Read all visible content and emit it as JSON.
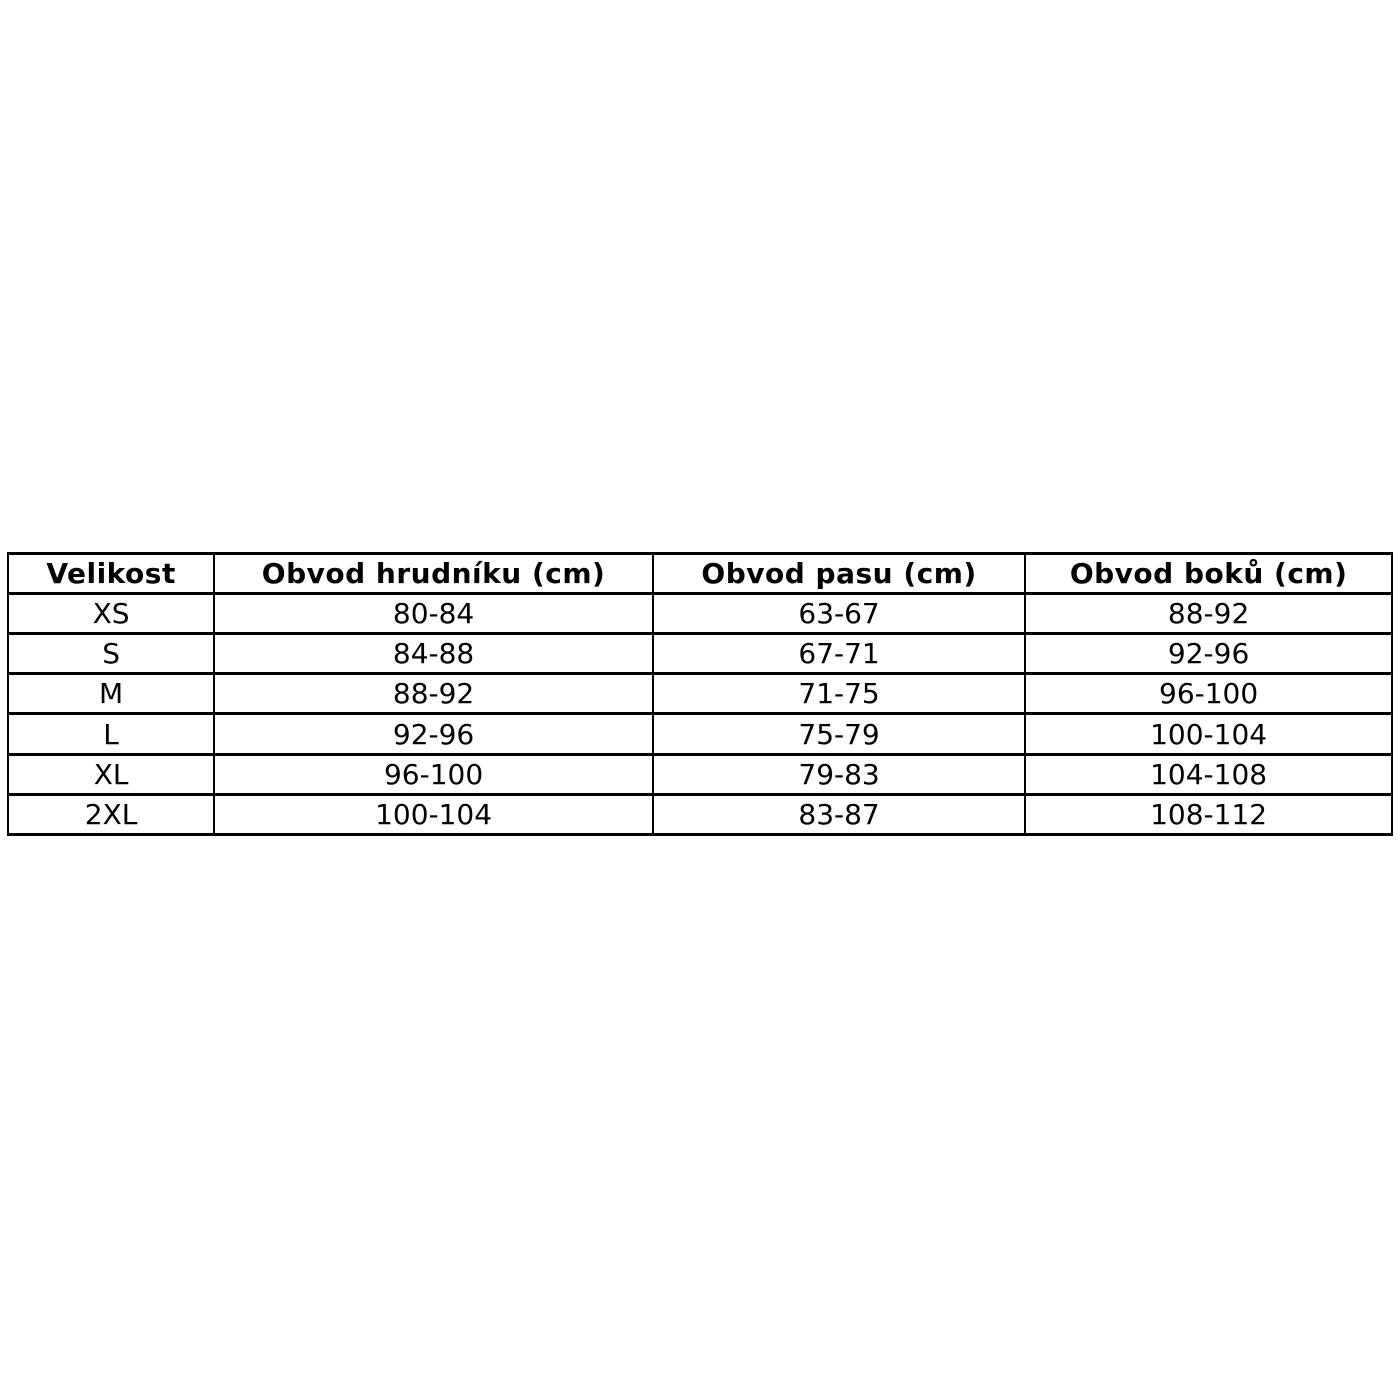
{
  "colors": {
    "background": "#ffffff",
    "border": "#000000",
    "text": "#000000"
  },
  "table": {
    "columns": [
      "Velikost",
      "Obvod hrudníku (cm)",
      "Obvod pasu (cm)",
      "Obvod boků (cm)"
    ],
    "rows": [
      [
        "XS",
        "80-84",
        "63-67",
        "88-92"
      ],
      [
        "S",
        "84-88",
        "67-71",
        "92-96"
      ],
      [
        "M",
        "88-92",
        "71-75",
        "96-100"
      ],
      [
        "L",
        "92-96",
        "75-79",
        "100-104"
      ],
      [
        "XL",
        "96-100",
        "79-83",
        "104-108"
      ],
      [
        "2XL",
        "100-104",
        "83-87",
        "108-112"
      ]
    ]
  }
}
